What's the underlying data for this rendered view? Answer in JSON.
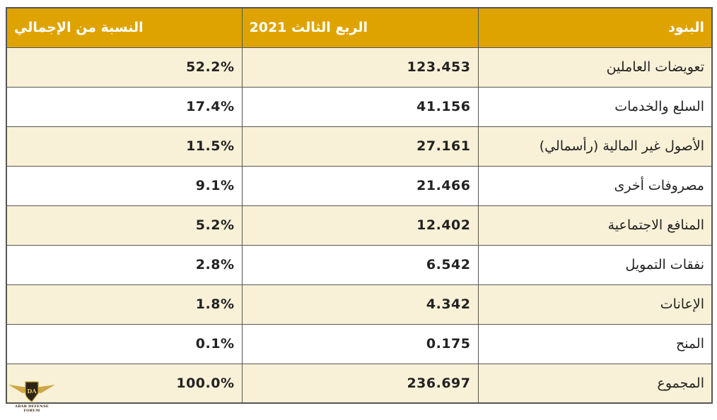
{
  "table": {
    "headers": {
      "items": "البنود",
      "q3_2021": "الربع الثالث 2021",
      "share": "النسبة من الإجمالي"
    },
    "rows": [
      {
        "item": "تعويضات العاملين",
        "value": "123.453",
        "share": "52.2%"
      },
      {
        "item": "السلع والخدمات",
        "value": "41.156",
        "share": "17.4%"
      },
      {
        "item": "الأصول غير المالية (رأسمالي)",
        "value": "27.161",
        "share": "11.5%"
      },
      {
        "item": "مصروفات أخرى",
        "value": "21.466",
        "share": "9.1%"
      },
      {
        "item": "المنافع الاجتماعية",
        "value": "12.402",
        "share": "5.2%"
      },
      {
        "item": "نفقات التمويل",
        "value": "6.542",
        "share": "2.8%"
      },
      {
        "item": "الإعانات",
        "value": "4.342",
        "share": "1.8%"
      },
      {
        "item": "المنح",
        "value": "0.175",
        "share": "0.1%"
      },
      {
        "item": "المجموع",
        "value": "236.697",
        "share": "100.0%"
      }
    ]
  },
  "watermark": {
    "initials": "DA",
    "text": "ARAB DEFENSE FORUM"
  },
  "colors": {
    "header_bg": "#dfa300",
    "odd_row_bg": "#f9f1d7",
    "border": "#555555"
  }
}
